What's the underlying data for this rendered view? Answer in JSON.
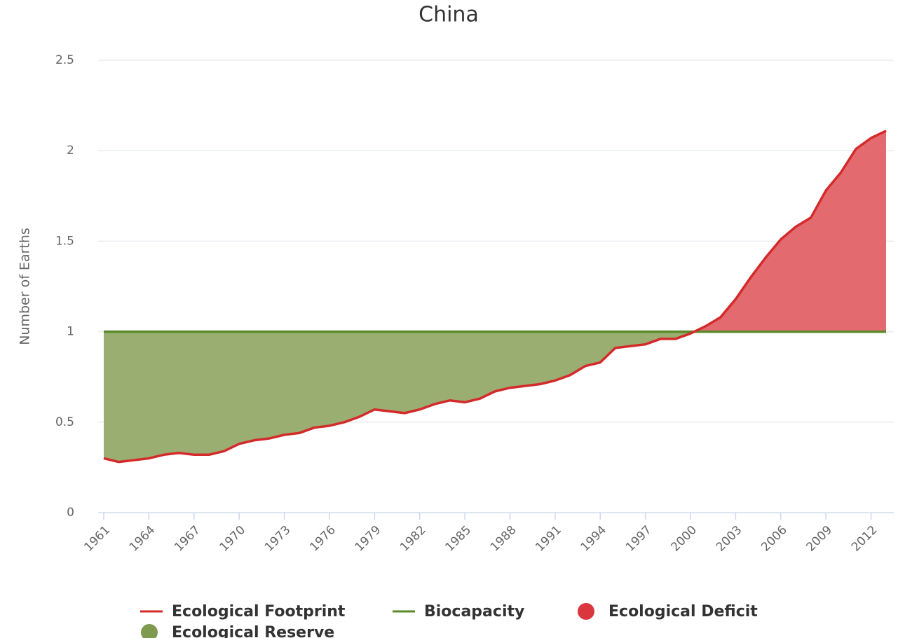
{
  "chart_data": {
    "type": "area-difference",
    "title": "China",
    "y_label": "Number of Earths",
    "x": [
      1961,
      1962,
      1963,
      1964,
      1965,
      1966,
      1967,
      1968,
      1969,
      1970,
      1971,
      1972,
      1973,
      1974,
      1975,
      1976,
      1977,
      1978,
      1979,
      1980,
      1981,
      1982,
      1983,
      1984,
      1985,
      1986,
      1987,
      1988,
      1989,
      1990,
      1991,
      1992,
      1993,
      1994,
      1995,
      1996,
      1997,
      1998,
      1999,
      2000,
      2001,
      2002,
      2003,
      2004,
      2005,
      2006,
      2007,
      2008,
      2009,
      2010,
      2011,
      2012,
      2013
    ],
    "xlim": [
      1961,
      2013
    ],
    "xticks": [
      1961,
      1964,
      1967,
      1970,
      1973,
      1976,
      1979,
      1982,
      1985,
      1988,
      1991,
      1994,
      1997,
      2000,
      2003,
      2006,
      2009,
      2012
    ],
    "ylim": [
      0,
      2.5
    ],
    "yticks": [
      0,
      0.5,
      1,
      1.5,
      2,
      2.5
    ],
    "grid": true,
    "series": [
      {
        "name": "Ecological Footprint",
        "color": "#d42a2a",
        "values": [
          0.3,
          0.28,
          0.29,
          0.3,
          0.32,
          0.33,
          0.32,
          0.32,
          0.34,
          0.38,
          0.4,
          0.41,
          0.43,
          0.44,
          0.47,
          0.48,
          0.5,
          0.53,
          0.57,
          0.56,
          0.55,
          0.57,
          0.6,
          0.62,
          0.61,
          0.63,
          0.67,
          0.69,
          0.7,
          0.71,
          0.73,
          0.76,
          0.81,
          0.83,
          0.91,
          0.92,
          0.93,
          0.96,
          0.96,
          0.99,
          1.03,
          1.08,
          1.18,
          1.3,
          1.41,
          1.51,
          1.58,
          1.63,
          1.78,
          1.88,
          2.01,
          2.07,
          2.11
        ]
      },
      {
        "name": "Biocapacity",
        "color": "#5a8a2a",
        "values": [
          1,
          1,
          1,
          1,
          1,
          1,
          1,
          1,
          1,
          1,
          1,
          1,
          1,
          1,
          1,
          1,
          1,
          1,
          1,
          1,
          1,
          1,
          1,
          1,
          1,
          1,
          1,
          1,
          1,
          1,
          1,
          1,
          1,
          1,
          1,
          1,
          1,
          1,
          1,
          1,
          1,
          1,
          1,
          1,
          1,
          1,
          1,
          1,
          1,
          1,
          1,
          1,
          1
        ]
      }
    ],
    "areas": [
      {
        "name": "Ecological Deficit",
        "color": "#e36a6e"
      },
      {
        "name": "Ecological Reserve",
        "color": "#9aae72"
      }
    ]
  }
}
